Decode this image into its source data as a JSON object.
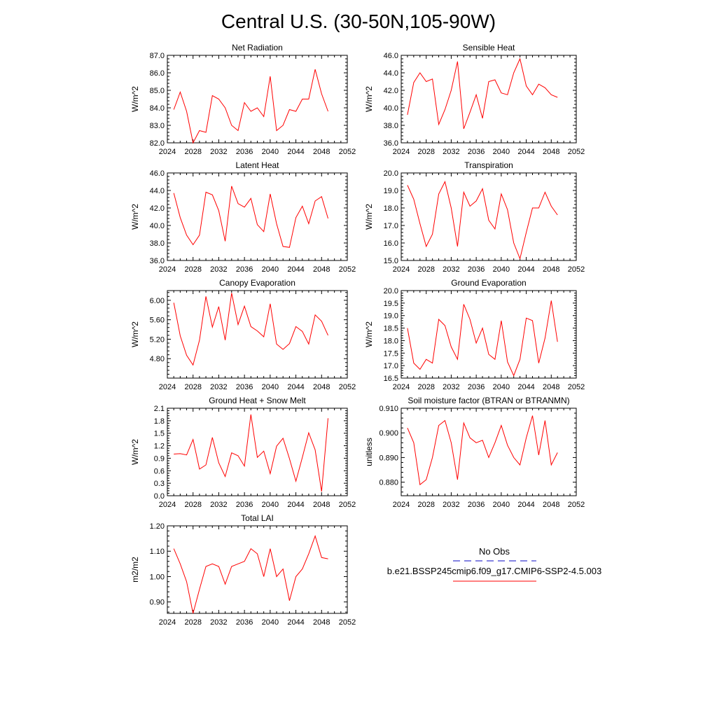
{
  "page": {
    "title": "Central U.S. (30-50N,105-90W)"
  },
  "legend": {
    "entries": [
      {
        "label": "No Obs",
        "color": "#3b3bd0",
        "style": "dashed"
      },
      {
        "label": "b.e21.BSSP245cmip6.f09_g17.CMIP6-SSP2-4.5.003",
        "color": "#ff0000",
        "style": "solid"
      }
    ]
  },
  "chart_data": [
    {
      "type": "line",
      "title": "Net Radiation",
      "ylabel": "W/m^2",
      "xlim": [
        2024,
        2052
      ],
      "ylim": [
        82.0,
        87.0
      ],
      "xticks": [
        2024,
        2028,
        2032,
        2036,
        2040,
        2044,
        2048,
        2052
      ],
      "yticks": [
        "82.0",
        "83.0",
        "84.0",
        "85.0",
        "86.0",
        "87.0"
      ],
      "x": [
        2025,
        2026,
        2027,
        2028,
        2029,
        2030,
        2031,
        2032,
        2033,
        2034,
        2035,
        2036,
        2037,
        2038,
        2039,
        2040,
        2041,
        2042,
        2043,
        2044,
        2045,
        2046,
        2047,
        2048,
        2049
      ],
      "series": [
        {
          "color": "#ff0000",
          "values": [
            83.9,
            84.9,
            83.8,
            82.0,
            82.7,
            82.6,
            84.7,
            84.5,
            84.0,
            83.0,
            82.7,
            84.3,
            83.8,
            84.0,
            83.5,
            85.8,
            82.7,
            83.0,
            83.9,
            83.8,
            84.5,
            84.5,
            86.2,
            84.8,
            83.8
          ]
        }
      ]
    },
    {
      "type": "line",
      "title": "Sensible Heat",
      "ylabel": "W/m^2",
      "xlim": [
        2024,
        2052
      ],
      "ylim": [
        36.0,
        46.0
      ],
      "xticks": [
        2024,
        2028,
        2032,
        2036,
        2040,
        2044,
        2048,
        2052
      ],
      "yticks": [
        "36.0",
        "38.0",
        "40.0",
        "42.0",
        "44.0",
        "46.0"
      ],
      "x": [
        2025,
        2026,
        2027,
        2028,
        2029,
        2030,
        2031,
        2032,
        2033,
        2034,
        2035,
        2036,
        2037,
        2038,
        2039,
        2040,
        2041,
        2042,
        2043,
        2044,
        2045,
        2046,
        2047,
        2048,
        2049
      ],
      "series": [
        {
          "color": "#ff0000",
          "values": [
            39.2,
            42.9,
            44.0,
            43.0,
            43.3,
            38.1,
            39.8,
            42.0,
            45.3,
            37.6,
            39.5,
            41.5,
            38.8,
            43.0,
            43.2,
            41.7,
            41.5,
            44.0,
            45.6,
            42.5,
            41.5,
            42.7,
            42.3,
            41.5,
            41.2
          ]
        }
      ]
    },
    {
      "type": "line",
      "title": "Latent Heat",
      "ylabel": "W/m^2",
      "xlim": [
        2024,
        2052
      ],
      "ylim": [
        36.0,
        46.0
      ],
      "xticks": [
        2024,
        2028,
        2032,
        2036,
        2040,
        2044,
        2048,
        2052
      ],
      "yticks": [
        "36.0",
        "38.0",
        "40.0",
        "42.0",
        "44.0",
        "46.0"
      ],
      "x": [
        2025,
        2026,
        2027,
        2028,
        2029,
        2030,
        2031,
        2032,
        2033,
        2034,
        2035,
        2036,
        2037,
        2038,
        2039,
        2040,
        2041,
        2042,
        2043,
        2044,
        2045,
        2046,
        2047,
        2048,
        2049
      ],
      "series": [
        {
          "color": "#ff0000",
          "values": [
            43.7,
            40.9,
            38.9,
            37.8,
            38.9,
            43.8,
            43.5,
            41.7,
            38.2,
            44.5,
            42.5,
            42.1,
            43.1,
            40.1,
            39.3,
            43.6,
            40.2,
            37.6,
            37.5,
            40.9,
            42.2,
            40.2,
            42.8,
            43.3,
            40.8
          ]
        }
      ]
    },
    {
      "type": "line",
      "title": "Transpiration",
      "ylabel": "W/m^2",
      "xlim": [
        2024,
        2052
      ],
      "ylim": [
        15.0,
        20.0
      ],
      "xticks": [
        2024,
        2028,
        2032,
        2036,
        2040,
        2044,
        2048,
        2052
      ],
      "yticks": [
        "15.0",
        "16.0",
        "17.0",
        "18.0",
        "19.0",
        "20.0"
      ],
      "x": [
        2025,
        2026,
        2027,
        2028,
        2029,
        2030,
        2031,
        2032,
        2033,
        2034,
        2035,
        2036,
        2037,
        2038,
        2039,
        2040,
        2041,
        2042,
        2043,
        2044,
        2045,
        2046,
        2047,
        2048,
        2049
      ],
      "series": [
        {
          "color": "#ff0000",
          "values": [
            19.3,
            18.5,
            17.1,
            15.8,
            16.5,
            18.8,
            19.5,
            18.0,
            15.8,
            18.9,
            18.1,
            18.4,
            19.1,
            17.3,
            16.8,
            18.8,
            17.9,
            16.0,
            15.1,
            16.6,
            18.0,
            18.0,
            18.9,
            18.1,
            17.6
          ]
        }
      ]
    },
    {
      "type": "line",
      "title": "Canopy Evaporation",
      "ylabel": "W/m^2",
      "xlim": [
        2024,
        2052
      ],
      "ylim": [
        4.4,
        6.2
      ],
      "xticks": [
        2024,
        2028,
        2032,
        2036,
        2040,
        2044,
        2048,
        2052
      ],
      "yticks": [
        "4.80",
        "5.20",
        "5.60",
        "6.00"
      ],
      "x": [
        2025,
        2026,
        2027,
        2028,
        2029,
        2030,
        2031,
        2032,
        2033,
        2034,
        2035,
        2036,
        2037,
        2038,
        2039,
        2040,
        2041,
        2042,
        2043,
        2044,
        2045,
        2046,
        2047,
        2048,
        2049
      ],
      "series": [
        {
          "color": "#ff0000",
          "values": [
            5.95,
            5.27,
            4.87,
            4.67,
            5.18,
            6.08,
            5.45,
            5.87,
            5.18,
            6.15,
            5.5,
            5.88,
            5.46,
            5.37,
            5.25,
            5.93,
            5.1,
            4.99,
            5.11,
            5.46,
            5.36,
            5.1,
            5.7,
            5.57,
            5.28
          ]
        }
      ]
    },
    {
      "type": "line",
      "title": "Ground Evaporation",
      "ylabel": "W/m^2",
      "xlim": [
        2024,
        2052
      ],
      "ylim": [
        16.5,
        20.0
      ],
      "xticks": [
        2024,
        2028,
        2032,
        2036,
        2040,
        2044,
        2048,
        2052
      ],
      "yticks": [
        "16.5",
        "17.0",
        "17.5",
        "18.0",
        "18.5",
        "19.0",
        "19.5",
        "20.0"
      ],
      "x": [
        2025,
        2026,
        2027,
        2028,
        2029,
        2030,
        2031,
        2032,
        2033,
        2034,
        2035,
        2036,
        2037,
        2038,
        2039,
        2040,
        2041,
        2042,
        2043,
        2044,
        2045,
        2046,
        2047,
        2048,
        2049
      ],
      "series": [
        {
          "color": "#ff0000",
          "values": [
            18.5,
            17.1,
            16.85,
            17.25,
            17.1,
            18.85,
            18.6,
            17.75,
            17.25,
            19.45,
            18.85,
            17.9,
            18.5,
            17.45,
            17.25,
            18.8,
            17.15,
            16.6,
            17.25,
            18.9,
            18.8,
            17.1,
            18.1,
            19.6,
            17.95
          ]
        }
      ]
    },
    {
      "type": "line",
      "title": "Ground Heat + Snow Melt",
      "ylabel": "W/m^2",
      "xlim": [
        2024,
        2052
      ],
      "ylim": [
        0.0,
        2.1
      ],
      "xticks": [
        2024,
        2028,
        2032,
        2036,
        2040,
        2044,
        2048,
        2052
      ],
      "yticks": [
        "0.0",
        "0.3",
        "0.6",
        "0.9",
        "1.2",
        "1.5",
        "1.8",
        "2.1"
      ],
      "x": [
        2025,
        2026,
        2027,
        2028,
        2029,
        2030,
        2031,
        2032,
        2033,
        2034,
        2035,
        2036,
        2037,
        2038,
        2039,
        2040,
        2041,
        2042,
        2043,
        2044,
        2045,
        2046,
        2047,
        2048,
        2049
      ],
      "series": [
        {
          "color": "#ff0000",
          "values": [
            1.0,
            1.01,
            0.98,
            1.35,
            0.64,
            0.74,
            1.4,
            0.79,
            0.46,
            1.03,
            0.96,
            0.71,
            1.95,
            0.92,
            1.07,
            0.53,
            1.19,
            1.38,
            0.89,
            0.35,
            0.92,
            1.51,
            1.1,
            0.1,
            1.86
          ]
        }
      ]
    },
    {
      "type": "line",
      "title": "Soil moisture factor (BTRAN or BTRANMN)",
      "ylabel": "unitless",
      "xlim": [
        2024,
        2052
      ],
      "ylim": [
        0.8745,
        0.91
      ],
      "xticks": [
        2024,
        2028,
        2032,
        2036,
        2040,
        2044,
        2048,
        2052
      ],
      "yticks": [
        "0.880",
        "0.890",
        "0.900",
        "0.910"
      ],
      "x": [
        2025,
        2026,
        2027,
        2028,
        2029,
        2030,
        2031,
        2032,
        2033,
        2034,
        2035,
        2036,
        2037,
        2038,
        2039,
        2040,
        2041,
        2042,
        2043,
        2044,
        2045,
        2046,
        2047,
        2048,
        2049
      ],
      "series": [
        {
          "color": "#ff0000",
          "values": [
            0.902,
            0.896,
            0.879,
            0.881,
            0.89,
            0.903,
            0.905,
            0.896,
            0.881,
            0.904,
            0.898,
            0.896,
            0.897,
            0.89,
            0.896,
            0.903,
            0.895,
            0.89,
            0.887,
            0.898,
            0.907,
            0.891,
            0.905,
            0.887,
            0.892
          ]
        }
      ]
    },
    {
      "type": "line",
      "title": "Total LAI",
      "ylabel": "m2/m2",
      "xlim": [
        2024,
        2052
      ],
      "ylim": [
        0.855,
        1.2
      ],
      "xticks": [
        2024,
        2028,
        2032,
        2036,
        2040,
        2044,
        2048,
        2052
      ],
      "yticks": [
        "0.90",
        "1.00",
        "1.10",
        "1.20"
      ],
      "x": [
        2025,
        2026,
        2027,
        2028,
        2029,
        2030,
        2031,
        2032,
        2033,
        2034,
        2035,
        2036,
        2037,
        2038,
        2039,
        2040,
        2041,
        2042,
        2043,
        2044,
        2045,
        2046,
        2047,
        2048,
        2049
      ],
      "series": [
        {
          "color": "#ff0000",
          "values": [
            1.11,
            1.05,
            0.98,
            0.855,
            0.95,
            1.04,
            1.05,
            1.04,
            0.97,
            1.04,
            1.05,
            1.06,
            1.11,
            1.09,
            1.0,
            1.11,
            1.0,
            1.03,
            0.905,
            1.0,
            1.03,
            1.09,
            1.16,
            1.075,
            1.07
          ]
        }
      ]
    }
  ]
}
